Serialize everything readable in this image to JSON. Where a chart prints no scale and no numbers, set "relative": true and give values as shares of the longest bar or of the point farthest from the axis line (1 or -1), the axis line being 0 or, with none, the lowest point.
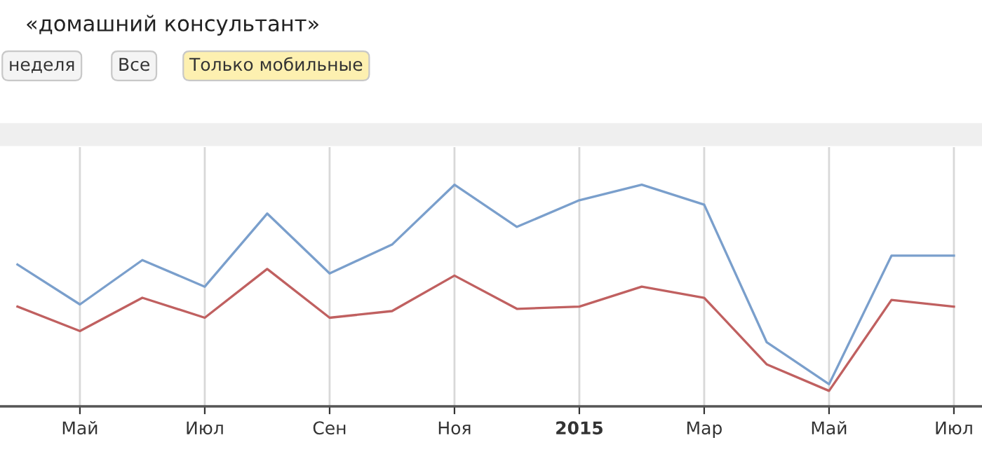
{
  "chart_data": {
    "type": "line",
    "title": "«домашний консультант»",
    "relative": true,
    "annotations": [
      "неделя",
      "Все",
      "Только мобильные"
    ],
    "categories": [
      null,
      "Май",
      null,
      "Июл",
      null,
      "Сен",
      null,
      "Ноя",
      null,
      "2015",
      null,
      "Мар",
      null,
      "Май",
      null,
      "Июл"
    ],
    "grid": "x",
    "legend": false,
    "series": [
      {
        "color": "#7a9fcc",
        "values": [
          0.64,
          0.46,
          0.66,
          0.54,
          0.87,
          0.6,
          0.73,
          1.0,
          0.81,
          0.93,
          1.0,
          0.91,
          0.29,
          0.1,
          0.68,
          0.68
        ]
      },
      {
        "color": "#c06060",
        "values": [
          0.45,
          0.34,
          0.49,
          0.4,
          0.62,
          0.4,
          0.43,
          0.59,
          0.44,
          0.45,
          0.54,
          0.49,
          0.19,
          0.07,
          0.48,
          0.45
        ]
      }
    ]
  }
}
